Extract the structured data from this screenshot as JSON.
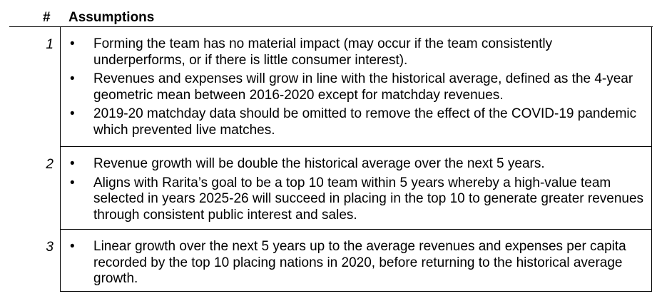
{
  "header": {
    "number_label": "#",
    "title": "Assumptions"
  },
  "rows": [
    {
      "number": "1",
      "bullets": [
        "Forming the team has no material impact (may occur if the team consistently underperforms, or if there is little consumer interest).",
        "Revenues and expenses will grow in line with the historical average, defined as the 4-year geometric mean between 2016-2020 except for matchday revenues.",
        "2019-20 matchday data should be omitted to remove the effect of the COVID-19 pandemic which prevented live matches."
      ]
    },
    {
      "number": "2",
      "bullets": [
        "Revenue growth will be double the historical average over the next 5 years.",
        "Aligns with Rarita’s goal to be a top 10 team within 5 years whereby a high-value team selected in years 2025-26 will succeed in placing in the top 10 to generate greater revenues through consistent public interest and sales."
      ]
    },
    {
      "number": "3",
      "bullets": [
        "Linear growth over the next 5 years up to the average revenues and expenses per capita recorded by the top 10 placing nations in 2020, before returning to the historical average growth."
      ]
    }
  ],
  "bullet_glyph": "•"
}
